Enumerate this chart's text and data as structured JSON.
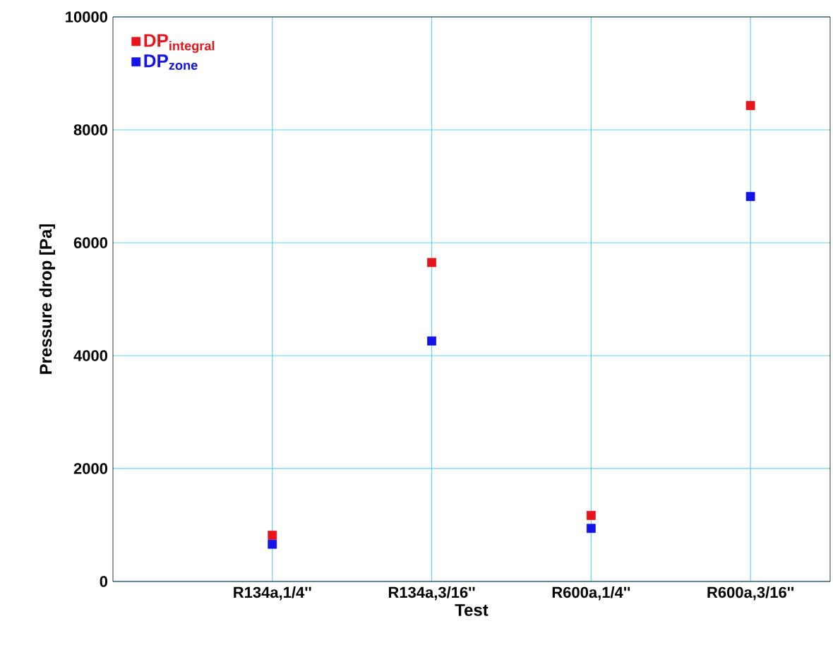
{
  "chart_data": {
    "type": "scatter",
    "xlabel": "Test",
    "ylabel": "Pressure drop [Pa]",
    "categories": [
      "R134a,1/4''",
      "R134a,3/16''",
      "R600a,1/4''",
      "R600a,3/16''"
    ],
    "series": [
      {
        "name": "DP$_{integral}$",
        "color": "#e8141c",
        "values": [
          820,
          5650,
          1170,
          8430
        ]
      },
      {
        "name": "DP$_{zone}$",
        "color": "#1414e8",
        "values": [
          660,
          4260,
          940,
          6820
        ]
      }
    ],
    "ylim": [
      0,
      10000
    ],
    "yticks": [
      0,
      2000,
      4000,
      6000,
      8000,
      10000
    ],
    "grid": true,
    "legend": "top left",
    "marker": "square"
  }
}
